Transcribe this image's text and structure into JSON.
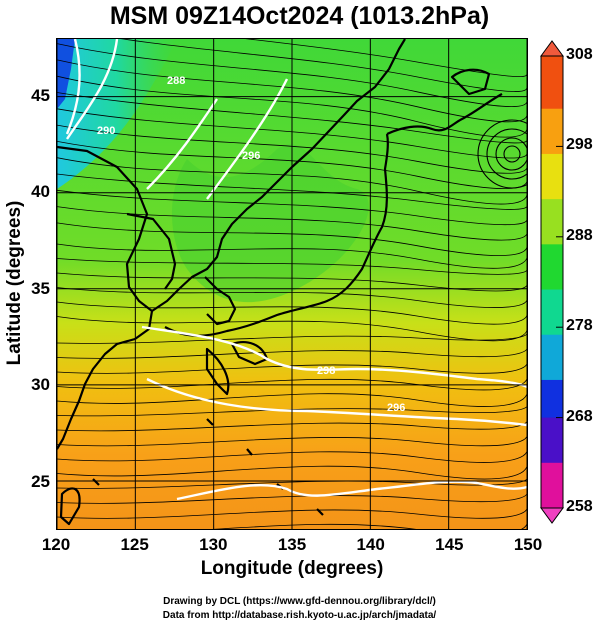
{
  "title": "MSM 09Z14Oct2024 (1013.2hPa)",
  "axes": {
    "xlabel": "Longitude (degrees)",
    "ylabel": "Latitude  (degrees)",
    "xticks": [
      "120",
      "125",
      "130",
      "135",
      "140",
      "145",
      "150"
    ],
    "yticks": [
      "25",
      "30",
      "35",
      "40",
      "45"
    ],
    "xlim": [
      120,
      150
    ],
    "ylim": [
      22.5,
      48
    ]
  },
  "colorbar": {
    "labels": [
      "308",
      "298",
      "288",
      "278",
      "268",
      "258"
    ],
    "range": [
      258,
      308
    ],
    "colors": [
      "#e0109c",
      "#4a10c8",
      "#1030e0",
      "#10a8d8",
      "#10d890",
      "#20d830",
      "#98e020",
      "#e8e010",
      "#f8a010",
      "#f05010"
    ]
  },
  "contour_labels": [
    "290",
    "288",
    "296",
    "298",
    "296"
  ],
  "credits": {
    "line1": "Drawing by DCL (https://www.gfd-dennou.org/library/dcl/)",
    "line2": "Data from http://database.rish.kyoto-u.ac.jp/arch/jmadata/"
  },
  "colors": {
    "coast": "#000000",
    "stream": "#000000",
    "contour": "#ffffff",
    "grid": "#000000"
  }
}
